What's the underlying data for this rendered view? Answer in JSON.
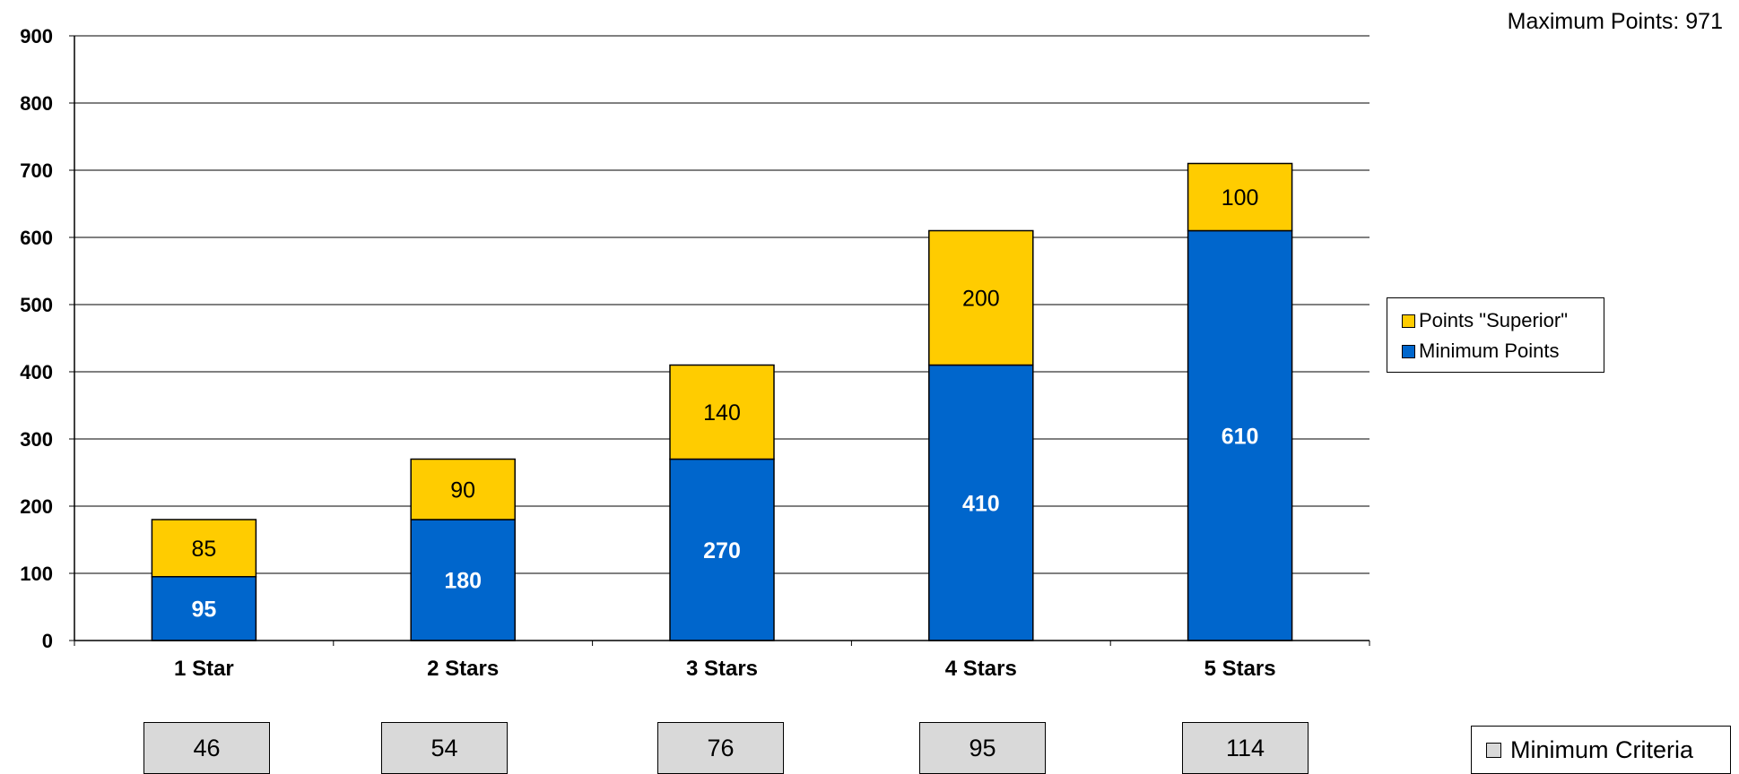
{
  "header": {
    "max_points": "Maximum Points: 971"
  },
  "colors": {
    "minimum": "#0066cc",
    "superior": "#ffcc00",
    "criteria": "#d9d9d9"
  },
  "chart_data": {
    "type": "bar",
    "stacked": true,
    "categories": [
      "1 Star",
      "2 Stars",
      "3 Stars",
      "4 Stars",
      "5 Stars"
    ],
    "series": [
      {
        "name": "Minimum Points",
        "values": [
          95,
          180,
          270,
          410,
          610
        ],
        "color": "#0066cc"
      },
      {
        "name": "Points \"Superior\"",
        "values": [
          85,
          90,
          140,
          200,
          100
        ],
        "color": "#ffcc00"
      }
    ],
    "ylim": [
      0,
      900
    ],
    "yticks": [
      0,
      100,
      200,
      300,
      400,
      500,
      600,
      700,
      800,
      900
    ],
    "grid": true,
    "legend_position": "right"
  },
  "legend": {
    "items": [
      {
        "label": "Points \"Superior\"",
        "color": "#ffcc00"
      },
      {
        "label": "Minimum Points",
        "color": "#0066cc"
      }
    ]
  },
  "criteria": {
    "legend_label": "Minimum Criteria",
    "values": [
      "46",
      "54",
      "76",
      "95",
      "114"
    ]
  }
}
